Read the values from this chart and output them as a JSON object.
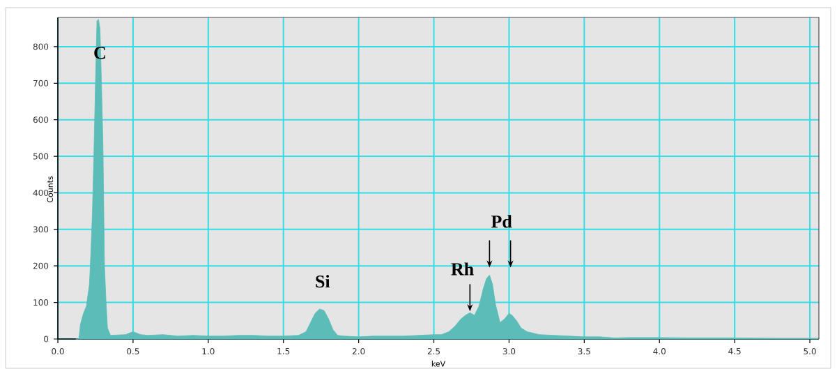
{
  "chart_data": {
    "type": "area",
    "xlabel": "keV",
    "ylabel": "Counts",
    "color": "#5bbcb8",
    "grid": true,
    "xlim": [
      0,
      5.06
    ],
    "ylim": [
      0,
      880
    ],
    "xticks": [
      {
        "value": 0,
        "label": "0.0"
      },
      0.5,
      {
        "value": 1,
        "label": "1.0"
      },
      1.5,
      {
        "value": 2,
        "label": "2.0"
      },
      2.5,
      {
        "value": 3,
        "label": "3.0"
      },
      3.5,
      {
        "value": 4,
        "label": "4.0"
      },
      4.5,
      {
        "value": 5,
        "label": "5.0"
      }
    ],
    "yticks": [
      0,
      100,
      200,
      300,
      400,
      500,
      600,
      700,
      800
    ],
    "x": [
      0.12,
      0.14,
      0.15,
      0.17,
      0.19,
      0.21,
      0.22,
      0.23,
      0.24,
      0.25,
      0.26,
      0.27,
      0.28,
      0.29,
      0.3,
      0.31,
      0.32,
      0.33,
      0.35,
      0.45,
      0.5,
      0.55,
      0.6,
      0.7,
      0.8,
      0.9,
      1.0,
      1.1,
      1.2,
      1.3,
      1.4,
      1.5,
      1.6,
      1.65,
      1.68,
      1.71,
      1.74,
      1.77,
      1.8,
      1.83,
      1.86,
      1.9,
      2.0,
      2.1,
      2.2,
      2.3,
      2.4,
      2.5,
      2.55,
      2.6,
      2.64,
      2.68,
      2.71,
      2.74,
      2.77,
      2.8,
      2.83,
      2.85,
      2.87,
      2.89,
      2.91,
      2.94,
      2.97,
      3.0,
      3.02,
      3.05,
      3.08,
      3.12,
      3.2,
      3.3,
      3.4,
      3.5,
      3.6,
      3.7,
      3.8,
      4.0,
      4.2,
      4.5,
      4.8,
      5.06
    ],
    "values": [
      0,
      0,
      40,
      70,
      90,
      150,
      240,
      350,
      510,
      700,
      870,
      875,
      850,
      700,
      530,
      200,
      105,
      30,
      10,
      12,
      20,
      12,
      10,
      12,
      8,
      10,
      8,
      8,
      10,
      10,
      8,
      8,
      10,
      20,
      45,
      70,
      82,
      78,
      55,
      25,
      10,
      8,
      6,
      8,
      8,
      8,
      10,
      12,
      12,
      20,
      35,
      55,
      65,
      72,
      65,
      90,
      140,
      165,
      175,
      150,
      95,
      45,
      55,
      70,
      65,
      50,
      30,
      20,
      12,
      10,
      8,
      6,
      6,
      3,
      4,
      4,
      3,
      3,
      2,
      2
    ],
    "annotations": [
      "C",
      "Si",
      {
        "text": "Rh",
        "x": 2.74,
        "y": 72
      },
      {
        "text": "Pd",
        "x": 2.87,
        "y": 175
      }
    ]
  }
}
